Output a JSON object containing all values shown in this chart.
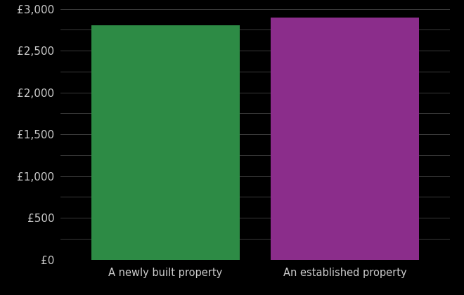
{
  "categories": [
    "A newly built property",
    "An established property"
  ],
  "values": [
    2800,
    2900
  ],
  "bar_colors": [
    "#2d8b45",
    "#8b2d8b"
  ],
  "background_color": "#000000",
  "text_color": "#cccccc",
  "grid_color": "#444444",
  "ylim": [
    0,
    3000
  ],
  "ytick_values": [
    0,
    250,
    500,
    750,
    1000,
    1250,
    1500,
    1750,
    2000,
    2250,
    2500,
    2750,
    3000
  ],
  "ytick_labels": [
    "£0",
    "",
    "£500",
    "",
    "£1,000",
    "",
    "£1,500",
    "",
    "£2,000",
    "",
    "£2,500",
    "",
    "£3,000"
  ],
  "bar_positions": [
    0.27,
    0.73
  ],
  "bar_width": 0.38,
  "tick_label_fontsize": 11,
  "xlabel_fontsize": 10.5,
  "figwidth": 6.6,
  "figheight": 4.2,
  "dpi": 100
}
